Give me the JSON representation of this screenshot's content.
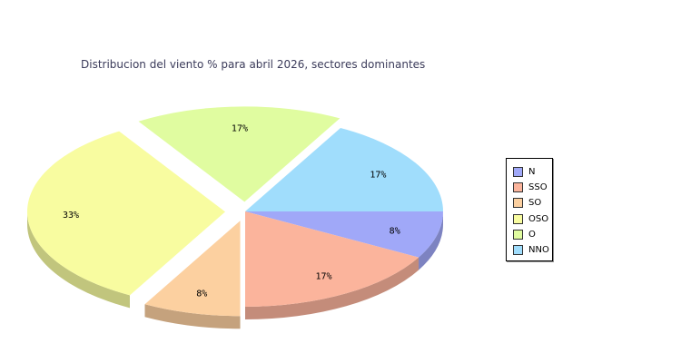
{
  "chart_data": {
    "type": "pie",
    "title": "Distribucion del viento % para abril 2026, sectores dominantes",
    "categories": [
      "N",
      "SSO",
      "SO",
      "OSO",
      "O",
      "NNO"
    ],
    "values": [
      8,
      17,
      8,
      33,
      17,
      17
    ],
    "value_labels": [
      "8%",
      "17%",
      "8%",
      "33%",
      "17%",
      "17%"
    ],
    "colors": [
      "#a0a8f8",
      "#fbb49c",
      "#fcd0a0",
      "#f8fca0",
      "#e0fca0",
      "#a0ddfc"
    ],
    "exploded": [
      false,
      false,
      true,
      true,
      true,
      false
    ],
    "legend_position": "right",
    "three_d": true
  }
}
